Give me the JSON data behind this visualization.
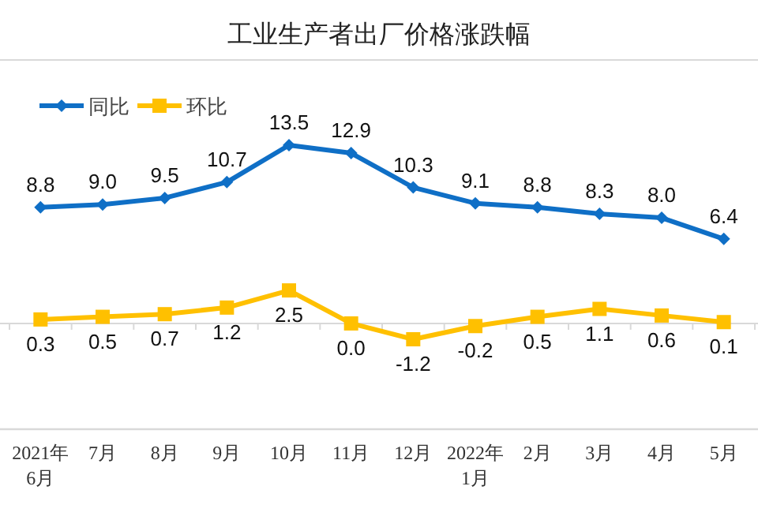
{
  "chart_data": {
    "type": "line",
    "title": "工业生产者出厂价格涨跌幅",
    "categories": [
      "2021年\n6月",
      "7月",
      "8月",
      "9月",
      "10月",
      "11月",
      "12月",
      "2022年\n1月",
      "2月",
      "3月",
      "4月",
      "5月"
    ],
    "series": [
      {
        "name": "同比",
        "color": "#0f6fc6",
        "marker": "diamond",
        "values": [
          8.8,
          9.0,
          9.5,
          10.7,
          13.5,
          12.9,
          10.3,
          9.1,
          8.8,
          8.3,
          8.0,
          6.4
        ],
        "value_labels": [
          "8.8",
          "9.0",
          "9.5",
          "10.7",
          "13.5",
          "12.9",
          "10.3",
          "9.1",
          "8.8",
          "8.3",
          "8.0",
          "6.4"
        ]
      },
      {
        "name": "环比",
        "color": "#ffc000",
        "marker": "square",
        "values": [
          0.3,
          0.5,
          0.7,
          1.2,
          2.5,
          0.0,
          -1.2,
          -0.2,
          0.5,
          1.1,
          0.6,
          0.1
        ],
        "value_labels": [
          "0.3",
          "0.5",
          "0.7",
          "1.2",
          "2.5",
          "0.0",
          "-1.2",
          "-0.2",
          "0.5",
          "1.1",
          "0.6",
          "0.1"
        ]
      }
    ],
    "legend": "top left",
    "tick_labels": "x",
    "ref_lines": [
      {
        "axis": "y",
        "value": 0,
        "color": "#d9d9d9"
      }
    ]
  }
}
